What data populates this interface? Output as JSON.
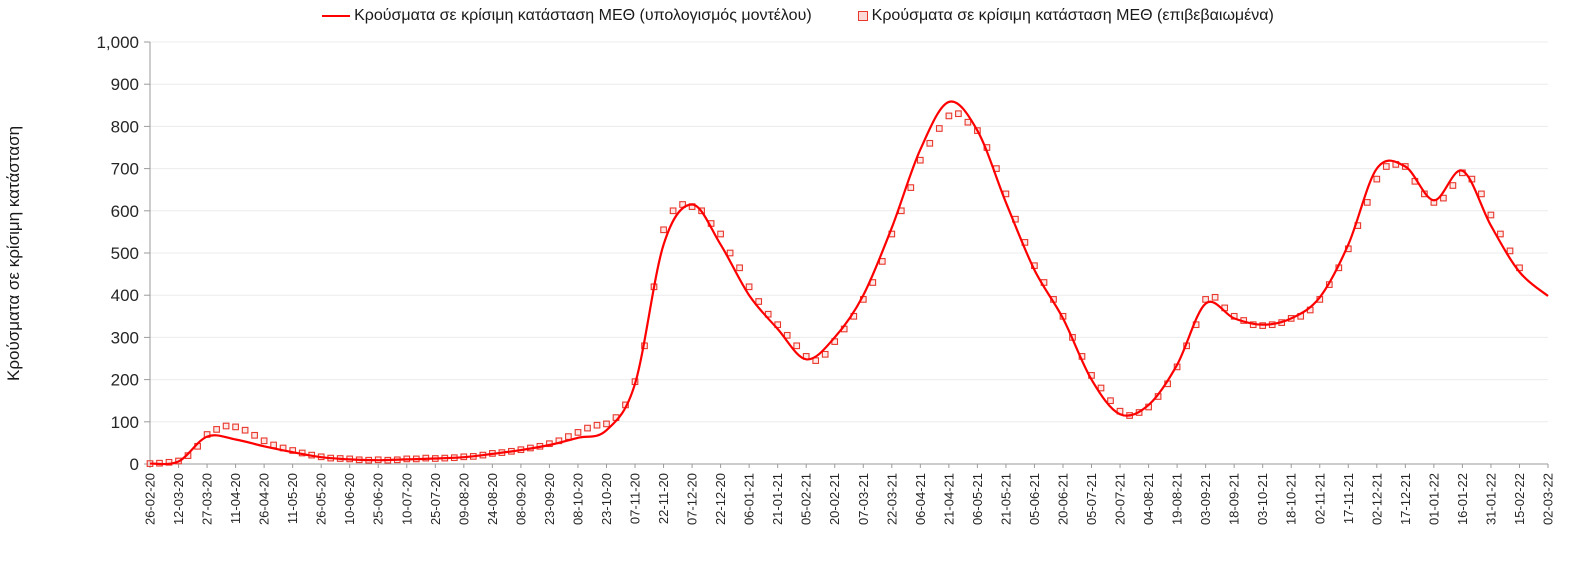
{
  "chart_data": {
    "type": "line",
    "title": "",
    "xlabel": "",
    "ylabel": "Κρούσματα σε κρίσιμη κατάσταση",
    "ylim": [
      0,
      1000
    ],
    "ytick_step": 100,
    "y_tick_labels": [
      "0",
      "100",
      "200",
      "300",
      "400",
      "500",
      "600",
      "700",
      "800",
      "900",
      "1,000"
    ],
    "x_tick_day_interval": 15,
    "x_total_days": 735,
    "grid": true,
    "legend_position": "top-center",
    "x_tick_labels": [
      "26-02-20",
      "12-03-20",
      "27-03-20",
      "11-04-20",
      "26-04-20",
      "11-05-20",
      "26-05-20",
      "10-06-20",
      "25-06-20",
      "10-07-20",
      "25-07-20",
      "09-08-20",
      "24-08-20",
      "08-09-20",
      "23-09-20",
      "08-10-20",
      "23-10-20",
      "07-11-20",
      "22-11-20",
      "07-12-20",
      "22-12-20",
      "06-01-21",
      "21-01-21",
      "05-02-21",
      "20-02-21",
      "07-03-21",
      "22-03-21",
      "06-04-21",
      "21-04-21",
      "06-05-21",
      "21-05-21",
      "05-06-21",
      "20-06-21",
      "05-07-21",
      "20-07-21",
      "04-08-21",
      "19-08-21",
      "03-09-21",
      "18-09-21",
      "03-10-21",
      "18-10-21",
      "02-11-21",
      "17-11-21",
      "02-12-21",
      "17-12-21",
      "01-01-22",
      "16-01-22",
      "31-01-22",
      "15-02-22",
      "02-03-22"
    ],
    "colors": {
      "line": "#FF0000",
      "marker": "#E8372C",
      "marker_fill": "#FCD9D6",
      "grid": "#ECECEC",
      "axis": "#9B9B9B",
      "tick_text": "#262626"
    },
    "series": [
      {
        "name": "Κρούσματα σε κρίσιμη κατάσταση ΜΕΘ (υπολογισμός μοντέλου)",
        "kind": "line",
        "color": "#FF0000",
        "day_start": 0,
        "day_step": 15,
        "values": [
          1,
          6,
          65,
          58,
          42,
          28,
          16,
          11,
          9,
          11,
          13,
          16,
          24,
          33,
          45,
          62,
          80,
          190,
          520,
          615,
          520,
          400,
          320,
          248,
          300,
          400,
          560,
          745,
          858,
          790,
          620,
          460,
          345,
          200,
          118,
          140,
          235,
          380,
          345,
          330,
          345,
          395,
          520,
          700,
          705,
          625,
          695,
          565,
          455,
          398
        ]
      },
      {
        "name": "Κρούσματα σε κρίσιμη κατάσταση ΜΕΘ (επιβεβαιωμένα)",
        "kind": "scatter",
        "marker": "open-square",
        "color": "#E8372C",
        "day_start": 0,
        "day_step": 5,
        "values": [
          1,
          2,
          4,
          7,
          20,
          42,
          70,
          82,
          90,
          88,
          80,
          68,
          55,
          45,
          38,
          32,
          26,
          21,
          17,
          14,
          13,
          12,
          10,
          9,
          10,
          9,
          10,
          12,
          12,
          14,
          13,
          14,
          15,
          17,
          18,
          21,
          25,
          27,
          30,
          34,
          38,
          42,
          48,
          55,
          65,
          75,
          85,
          92,
          95,
          110,
          140,
          195,
          280,
          420,
          555,
          600,
          615,
          610,
          600,
          570,
          545,
          500,
          465,
          420,
          385,
          355,
          330,
          305,
          280,
          255,
          245,
          260,
          290,
          320,
          350,
          390,
          430,
          480,
          545,
          600,
          655,
          720,
          760,
          795,
          825,
          830,
          810,
          790,
          750,
          700,
          640,
          580,
          525,
          470,
          430,
          390,
          350,
          300,
          255,
          210,
          180,
          150,
          125,
          115,
          122,
          135,
          160,
          190,
          230,
          280,
          330,
          390,
          395,
          370,
          350,
          340,
          330,
          328,
          330,
          335,
          345,
          350,
          365,
          390,
          425,
          465,
          510,
          565,
          620,
          675,
          705,
          710,
          705,
          670,
          640,
          620,
          630,
          660,
          690,
          675,
          640,
          590,
          545,
          505,
          465
        ]
      }
    ]
  }
}
